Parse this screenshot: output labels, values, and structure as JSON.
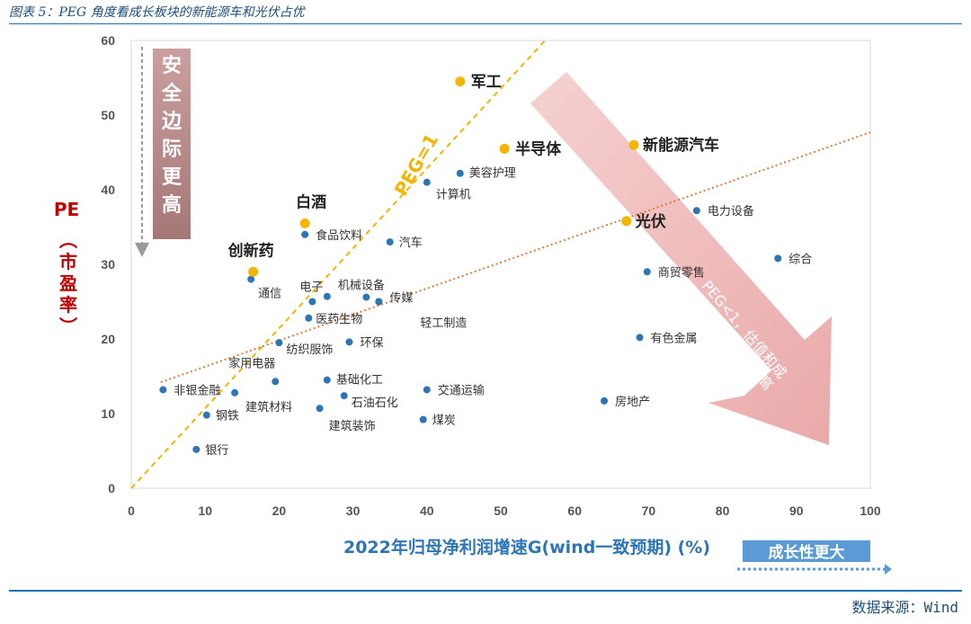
{
  "caption": "图表 5：PEG 角度看成长板块的新能源车和光伏占优",
  "source": "数据来源：Wind",
  "chart_data": {
    "type": "scatter",
    "xlabel": "2022年归母净利润增速G(wind一致预期) (%)",
    "ylabel_top": "PE",
    "ylabel_bottom": "（市盈率）",
    "xlim": [
      0,
      100
    ],
    "ylim": [
      0,
      60
    ],
    "x_ticks": [
      "0",
      "10",
      "20",
      "30",
      "40",
      "50",
      "60",
      "70",
      "80",
      "90",
      "100"
    ],
    "y_ticks": [
      "0",
      "10",
      "20",
      "30",
      "40",
      "50",
      "60"
    ],
    "peg_line_label": "PEG=1",
    "trendline": {
      "x": [
        4,
        100
      ],
      "y": [
        14.2,
        47.7
      ]
    },
    "annotations": {
      "safety_margin": "安全边际更高",
      "growth": "成长性更大",
      "peg_less_1": "PEG<1，估值和成长性的匹配度更高"
    },
    "colors": {
      "regular": "#2e75b6",
      "highlight": "#f5b400",
      "peg_line": "#f5b400",
      "trend": "#e07b39",
      "axis_title": "#c00000",
      "x_title": "#2e75b6"
    },
    "highlighted_points": [
      {
        "name": "军工",
        "x": 44.5,
        "y": 54.5
      },
      {
        "name": "半导体",
        "x": 50.5,
        "y": 45.5
      },
      {
        "name": "新能源汽车",
        "x": 68,
        "y": 46
      },
      {
        "name": "白酒",
        "x": 23.5,
        "y": 35.5
      },
      {
        "name": "光伏",
        "x": 67,
        "y": 35.8
      },
      {
        "name": "创新药",
        "x": 16.5,
        "y": 29
      }
    ],
    "points": [
      {
        "name": "美容护理",
        "x": 44.5,
        "y": 42.2
      },
      {
        "name": "计算机",
        "x": 40,
        "y": 41
      },
      {
        "name": "食品饮料",
        "x": 23.5,
        "y": 34
      },
      {
        "name": "汽车",
        "x": 35,
        "y": 33
      },
      {
        "name": "电力设备",
        "x": 76.5,
        "y": 37.2
      },
      {
        "name": "综合",
        "x": 87.5,
        "y": 30.8
      },
      {
        "name": "商贸零售",
        "x": 69.8,
        "y": 29
      },
      {
        "name": "通信",
        "x": 16.2,
        "y": 28
      },
      {
        "name": "电子",
        "x": 24.5,
        "y": 25
      },
      {
        "name": "机械设备",
        "x": 26.5,
        "y": 25.7
      },
      {
        "name": "传媒",
        "x": 33.5,
        "y": 25
      },
      {
        "name": "",
        "x": 31.8,
        "y": 25.6
      },
      {
        "name": "轻工制造",
        "x": 33.5,
        "y": 25
      },
      {
        "name": "医药生物",
        "x": 24,
        "y": 22.8
      },
      {
        "name": "纺织服饰",
        "x": 20,
        "y": 19.5
      },
      {
        "name": "环保",
        "x": 29.5,
        "y": 19.6
      },
      {
        "name": "有色金属",
        "x": 68.8,
        "y": 20.2
      },
      {
        "name": "家用电器",
        "x": 19.5,
        "y": 14.3
      },
      {
        "name": "基础化工",
        "x": 26.5,
        "y": 14.5
      },
      {
        "name": "非银金融",
        "x": 4.3,
        "y": 13.2
      },
      {
        "name": "建筑材料",
        "x": 14,
        "y": 12.8
      },
      {
        "name": "交通运输",
        "x": 40,
        "y": 13.2
      },
      {
        "name": "石油石化",
        "x": 28.8,
        "y": 12.4
      },
      {
        "name": "房地产",
        "x": 64,
        "y": 11.7
      },
      {
        "name": "建筑装饰",
        "x": 25.5,
        "y": 10.7
      },
      {
        "name": "钢铁",
        "x": 10.2,
        "y": 9.8
      },
      {
        "name": "煤炭",
        "x": 39.5,
        "y": 9.2
      },
      {
        "name": "银行",
        "x": 8.8,
        "y": 5.2
      }
    ]
  }
}
